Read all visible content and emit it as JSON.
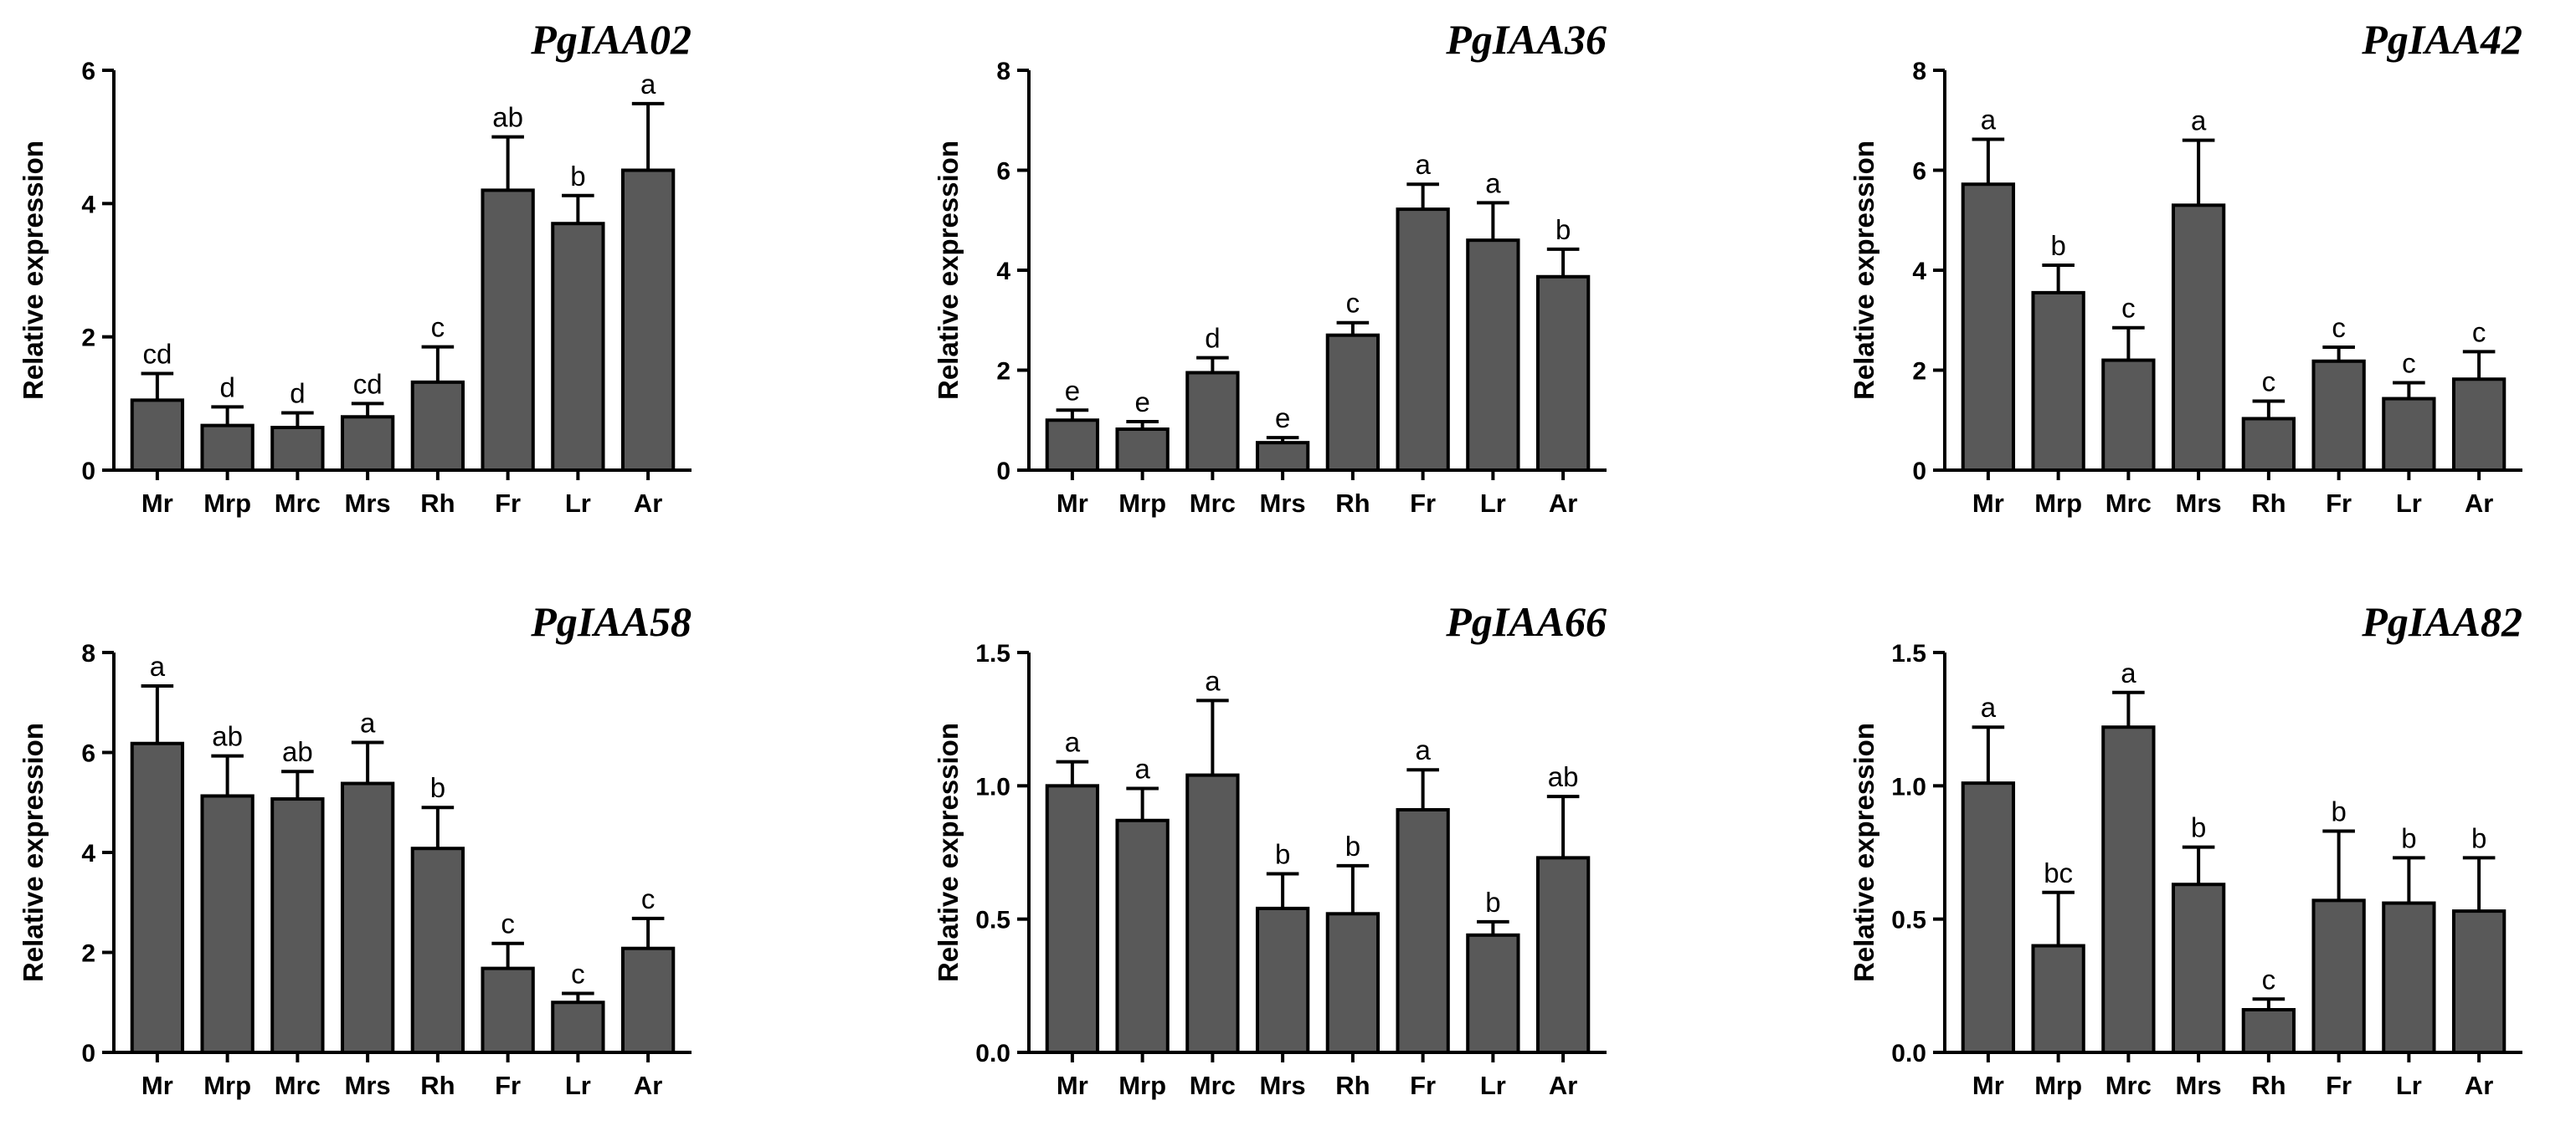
{
  "colors": {
    "bar_fill": "#595959",
    "axis": "#000000",
    "background": "#ffffff"
  },
  "chart_data": [
    {
      "type": "bar",
      "title": "PgIAA02",
      "ylabel": "Relative expression",
      "xlabel": "",
      "categories": [
        "Mr",
        "Mrp",
        "Mrc",
        "Mrs",
        "Rh",
        "Fr",
        "Lr",
        "Ar"
      ],
      "values": [
        1.05,
        0.67,
        0.64,
        0.8,
        1.32,
        4.2,
        3.7,
        4.5
      ],
      "errors": [
        0.4,
        0.28,
        0.22,
        0.2,
        0.53,
        0.8,
        0.42,
        1.0
      ],
      "significance": [
        "cd",
        "d",
        "d",
        "cd",
        "c",
        "ab",
        "b",
        "a"
      ],
      "ylim": [
        0,
        6
      ],
      "yticks": [
        "0",
        "2",
        "4",
        "6"
      ]
    },
    {
      "type": "bar",
      "title": "PgIAA36",
      "ylabel": "Relative expression",
      "xlabel": "",
      "categories": [
        "Mr",
        "Mrp",
        "Mrc",
        "Mrs",
        "Rh",
        "Fr",
        "Lr",
        "Ar"
      ],
      "values": [
        1.0,
        0.82,
        1.95,
        0.55,
        2.7,
        5.22,
        4.6,
        3.87
      ],
      "errors": [
        0.2,
        0.15,
        0.3,
        0.1,
        0.25,
        0.5,
        0.75,
        0.55
      ],
      "significance": [
        "e",
        "e",
        "d",
        "e",
        "c",
        "a",
        "a",
        "b"
      ],
      "ylim": [
        0,
        8
      ],
      "yticks": [
        "0",
        "2",
        "4",
        "6",
        "8"
      ]
    },
    {
      "type": "bar",
      "title": "PgIAA42",
      "ylabel": "Relative expression",
      "xlabel": "",
      "categories": [
        "Mr",
        "Mrp",
        "Mrc",
        "Mrs",
        "Rh",
        "Fr",
        "Lr",
        "Ar"
      ],
      "values": [
        5.72,
        3.55,
        2.2,
        5.3,
        1.03,
        2.18,
        1.43,
        1.82
      ],
      "errors": [
        0.9,
        0.55,
        0.65,
        1.3,
        0.35,
        0.28,
        0.32,
        0.55
      ],
      "significance": [
        "a",
        "b",
        "c",
        "a",
        "c",
        "c",
        "c",
        "c"
      ],
      "ylim": [
        0,
        8
      ],
      "yticks": [
        "0",
        "2",
        "4",
        "6",
        "8"
      ]
    },
    {
      "type": "bar",
      "title": "PgIAA58",
      "ylabel": "Relative expression",
      "xlabel": "",
      "categories": [
        "Mr",
        "Mrp",
        "Mrc",
        "Mrs",
        "Rh",
        "Fr",
        "Lr",
        "Ar"
      ],
      "values": [
        6.18,
        5.13,
        5.07,
        5.38,
        4.08,
        1.68,
        1.0,
        2.08
      ],
      "errors": [
        1.15,
        0.8,
        0.55,
        0.82,
        0.82,
        0.5,
        0.18,
        0.6
      ],
      "significance": [
        "a",
        "ab",
        "ab",
        "a",
        "b",
        "c",
        "c",
        "c"
      ],
      "ylim": [
        0,
        8
      ],
      "yticks": [
        "0",
        "2",
        "4",
        "6",
        "8"
      ]
    },
    {
      "type": "bar",
      "title": "PgIAA66",
      "ylabel": "Relative expression",
      "xlabel": "",
      "categories": [
        "Mr",
        "Mrp",
        "Mrc",
        "Mrs",
        "Rh",
        "Fr",
        "Lr",
        "Ar"
      ],
      "values": [
        1.0,
        0.87,
        1.04,
        0.54,
        0.52,
        0.91,
        0.44,
        0.73
      ],
      "errors": [
        0.09,
        0.12,
        0.28,
        0.13,
        0.18,
        0.15,
        0.05,
        0.23
      ],
      "significance": [
        "a",
        "a",
        "a",
        "b",
        "b",
        "a",
        "b",
        "ab"
      ],
      "ylim": [
        0,
        1.5
      ],
      "yticks": [
        "0.0",
        "0.5",
        "1.0",
        "1.5"
      ]
    },
    {
      "type": "bar",
      "title": "PgIAA82",
      "ylabel": "Relative expression",
      "xlabel": "",
      "categories": [
        "Mr",
        "Mrp",
        "Mrc",
        "Mrs",
        "Rh",
        "Fr",
        "Lr",
        "Ar"
      ],
      "values": [
        1.01,
        0.4,
        1.22,
        0.63,
        0.16,
        0.57,
        0.56,
        0.53
      ],
      "errors": [
        0.21,
        0.2,
        0.13,
        0.14,
        0.04,
        0.26,
        0.17,
        0.2
      ],
      "significance": [
        "a",
        "bc",
        "a",
        "b",
        "c",
        "b",
        "b",
        "b"
      ],
      "ylim": [
        0,
        1.5
      ],
      "yticks": [
        "0.0",
        "0.5",
        "1.0",
        "1.5"
      ]
    }
  ]
}
